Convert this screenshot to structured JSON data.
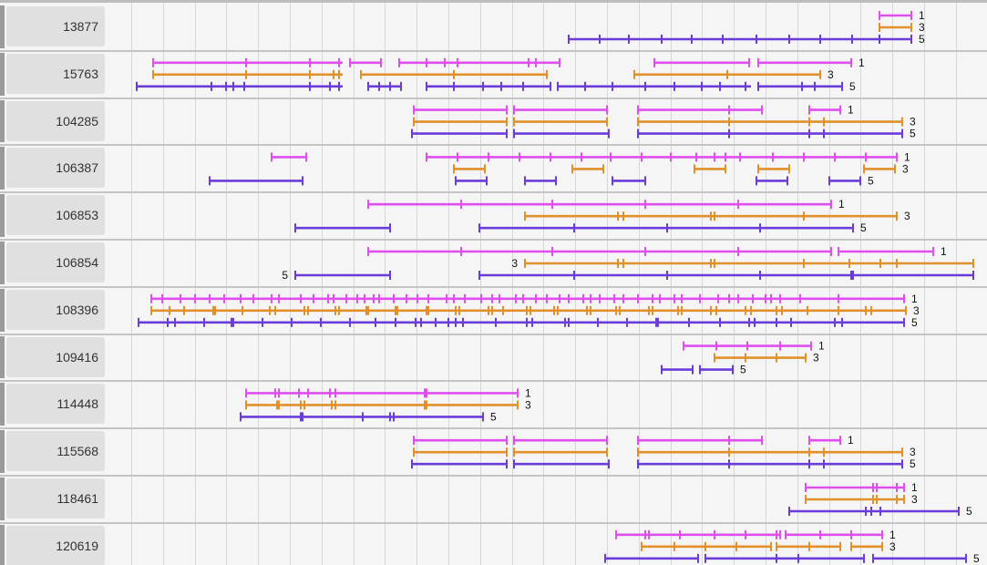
{
  "colors": {
    "frame1": "#e14ef0",
    "frame3": "#e2902a",
    "frame5": "#6a3ddb"
  },
  "rows": [
    {
      "id": "13877",
      "tracks": [
        {
          "frame": "1",
          "label": "1",
          "label_side": "right",
          "segments": [
            [
              965,
              1000
            ]
          ],
          "marks": [
            965,
            1000
          ]
        },
        {
          "frame": "3",
          "label": "3",
          "label_side": "right",
          "segments": [
            [
              965,
              1000
            ]
          ],
          "marks": [
            965,
            1000
          ]
        },
        {
          "frame": "5",
          "label": "5",
          "label_side": "right",
          "segments": [
            [
              624,
              1000
            ]
          ],
          "marks": [
            624,
            658,
            690,
            726,
            759,
            793,
            830,
            866,
            900,
            935,
            965,
            1000
          ]
        }
      ]
    },
    {
      "id": "15763",
      "tracks": [
        {
          "frame": "1",
          "label": "1",
          "label_side": "right",
          "segments": [
            [
              168,
              376
            ],
            [
              384,
              418
            ],
            [
              438,
              614
            ],
            [
              718,
              822
            ],
            [
              832,
              934
            ]
          ],
          "marks": [
            168,
            270,
            340,
            372,
            384,
            418,
            438,
            468,
            488,
            502,
            580,
            588,
            614,
            718,
            822,
            832,
            934
          ]
        },
        {
          "frame": "3",
          "label": "3",
          "label_side": "right",
          "segments": [
            [
              168,
              376
            ],
            [
              396,
              600
            ],
            [
              696,
              900
            ]
          ],
          "marks": [
            168,
            270,
            340,
            366,
            372,
            396,
            498,
            600,
            696,
            798,
            900
          ]
        },
        {
          "frame": "5",
          "label": "5",
          "label_side": "right",
          "segments": [
            [
              150,
              376
            ],
            [
              404,
              440
            ],
            [
              468,
              604
            ],
            [
              612,
              824
            ],
            [
              832,
              924
            ]
          ],
          "marks": [
            150,
            232,
            248,
            256,
            268,
            340,
            362,
            372,
            404,
            416,
            428,
            440,
            468,
            498,
            530,
            550,
            574,
            604,
            612,
            642,
            672,
            708,
            740,
            770,
            790,
            818,
            832,
            880,
            894,
            924
          ]
        }
      ]
    },
    {
      "id": "104285",
      "tracks": [
        {
          "frame": "1",
          "label": "1",
          "label_side": "right",
          "segments": [
            [
              454,
              556
            ],
            [
              564,
              666
            ],
            [
              700,
              836
            ],
            [
              888,
              922
            ]
          ],
          "marks": [
            454,
            556,
            564,
            666,
            700,
            800,
            836,
            888,
            922
          ]
        },
        {
          "frame": "3",
          "label": "3",
          "label_side": "right",
          "segments": [
            [
              454,
              556
            ],
            [
              564,
              666
            ],
            [
              700,
              990
            ]
          ],
          "marks": [
            454,
            556,
            564,
            666,
            700,
            800,
            888,
            904,
            990
          ]
        },
        {
          "frame": "5",
          "label": "5",
          "label_side": "right",
          "segments": [
            [
              452,
              556
            ],
            [
              564,
              668
            ],
            [
              700,
              990
            ]
          ],
          "marks": [
            452,
            556,
            564,
            668,
            700,
            800,
            888,
            904,
            990
          ]
        }
      ]
    },
    {
      "id": "106387",
      "tracks": [
        {
          "frame": "1",
          "label": "1",
          "label_side": "right",
          "segments": [
            [
              298,
              336
            ],
            [
              468,
              984
            ]
          ],
          "marks": [
            298,
            336,
            468,
            502,
            536,
            570,
            604,
            638,
            670,
            704,
            736,
            764,
            784,
            796,
            812,
            848,
            882,
            916,
            950,
            984
          ]
        },
        {
          "frame": "3",
          "label": "3",
          "label_side": "right",
          "segments": [
            [
              498,
              532
            ],
            [
              628,
              662
            ],
            [
              762,
              796
            ],
            [
              832,
              866
            ],
            [
              948,
              982
            ]
          ],
          "marks": [
            498,
            532,
            628,
            662,
            762,
            796,
            832,
            866,
            948,
            982
          ]
        },
        {
          "frame": "5",
          "label": "5",
          "label_side": "right",
          "segments": [
            [
              230,
              332
            ],
            [
              500,
              534
            ],
            [
              576,
              610
            ],
            [
              672,
              708
            ],
            [
              830,
              864
            ],
            [
              910,
              944
            ]
          ],
          "marks": [
            230,
            332,
            500,
            534,
            576,
            610,
            672,
            708,
            830,
            864,
            910,
            944
          ]
        }
      ]
    },
    {
      "id": "106853",
      "tracks": [
        {
          "frame": "1",
          "label": "1",
          "label_side": "right",
          "segments": [
            [
              404,
              912
            ]
          ],
          "marks": [
            404,
            506,
            606,
            708,
            810,
            912
          ]
        },
        {
          "frame": "3",
          "label": "3",
          "label_side": "right",
          "segments": [
            [
              576,
              984
            ]
          ],
          "marks": [
            576,
            678,
            684,
            780,
            784,
            882,
            984
          ]
        },
        {
          "frame": "5",
          "label": "5",
          "label_side": "right",
          "segments": [
            [
              324,
              428
            ],
            [
              526,
              936
            ]
          ],
          "marks": [
            324,
            428,
            526,
            630,
            732,
            834,
            936
          ]
        }
      ]
    },
    {
      "id": "106854",
      "tracks": [
        {
          "frame": "1",
          "label": "1",
          "label_side": "right",
          "segments": [
            [
              404,
              912
            ],
            [
              920,
              1024
            ]
          ],
          "marks": [
            404,
            506,
            606,
            708,
            810,
            912,
            920,
            1024
          ]
        },
        {
          "frame": "3",
          "label": "3",
          "label_side": "left",
          "segments": [
            [
              576,
              1068
            ]
          ],
          "marks": [
            576,
            678,
            684,
            780,
            784,
            882,
            932,
            966,
            984,
            1068
          ]
        },
        {
          "frame": "5",
          "label": "5",
          "label_side": "left",
          "segments": [
            [
              324,
              428
            ],
            [
              526,
              1068
            ]
          ],
          "marks": [
            324,
            428,
            526,
            630,
            732,
            834,
            934,
            936,
            1068
          ]
        }
      ]
    },
    {
      "id": "108396",
      "tracks": [
        {
          "frame": "1",
          "label": "1",
          "label_side": "right",
          "segments": [
            [
              166,
              992
            ]
          ],
          "marks": [
            166,
            178,
            198,
            214,
            230,
            246,
            264,
            278,
            298,
            306,
            330,
            344,
            360,
            366,
            380,
            392,
            400,
            410,
            416,
            432,
            446,
            458,
            470,
            490,
            498,
            510,
            528,
            540,
            548,
            566,
            574,
            588,
            600,
            614,
            624,
            640,
            648,
            658,
            674,
            684,
            700,
            716,
            724,
            740,
            748,
            768,
            788,
            800,
            810,
            826,
            840,
            846,
            856,
            878,
            920,
            992
          ]
        },
        {
          "frame": "3",
          "label": "3",
          "label_side": "right",
          "segments": [
            [
              166,
              994
            ]
          ],
          "marks": [
            166,
            186,
            202,
            234,
            236,
            266,
            296,
            302,
            334,
            338,
            368,
            372,
            402,
            404,
            434,
            436,
            468,
            470,
            500,
            504,
            536,
            540,
            552,
            578,
            582,
            608,
            612,
            644,
            648,
            676,
            680,
            712,
            716,
            744,
            748,
            780,
            786,
            818,
            824,
            852,
            858,
            886,
            920,
            950,
            956,
            994
          ]
        },
        {
          "frame": "5",
          "label": "5",
          "label_side": "right",
          "segments": [
            [
              152,
              992
            ]
          ],
          "marks": [
            152,
            184,
            192,
            224,
            254,
            256,
            288,
            320,
            352,
            384,
            412,
            434,
            456,
            462,
            478,
            492,
            500,
            508,
            544,
            578,
            584,
            620,
            624,
            656,
            688,
            720,
            722,
            756,
            790,
            822,
            828,
            852,
            868,
            916,
            924,
            992
          ]
        }
      ]
    },
    {
      "id": "109416",
      "tracks": [
        {
          "frame": "1",
          "label": "1",
          "label_side": "right",
          "segments": [
            [
              750,
              890
            ]
          ],
          "marks": [
            750,
            786,
            820,
            856,
            890
          ]
        },
        {
          "frame": "3",
          "label": "3",
          "label_side": "right",
          "segments": [
            [
              784,
              884
            ]
          ],
          "marks": [
            784,
            818,
            852,
            884
          ]
        },
        {
          "frame": "5",
          "label": "5",
          "label_side": "right",
          "segments": [
            [
              726,
              760
            ],
            [
              768,
              804
            ]
          ],
          "marks": [
            726,
            760,
            768,
            804
          ]
        }
      ]
    },
    {
      "id": "114448",
      "tracks": [
        {
          "frame": "1",
          "label": "1",
          "label_side": "right",
          "segments": [
            [
              270,
              568
            ]
          ],
          "marks": [
            270,
            302,
            306,
            328,
            338,
            362,
            368,
            466,
            468,
            568
          ]
        },
        {
          "frame": "3",
          "label": "3",
          "label_side": "right",
          "segments": [
            [
              270,
              568
            ]
          ],
          "marks": [
            270,
            304,
            306,
            330,
            334,
            364,
            368,
            466,
            468,
            568
          ]
        },
        {
          "frame": "5",
          "label": "5",
          "label_side": "right",
          "segments": [
            [
              264,
              530
            ]
          ],
          "marks": [
            264,
            330,
            332,
            398,
            428,
            432,
            530
          ]
        }
      ]
    },
    {
      "id": "115568",
      "tracks": [
        {
          "frame": "1",
          "label": "1",
          "label_side": "right",
          "segments": [
            [
              454,
              556
            ],
            [
              564,
              666
            ],
            [
              700,
              836
            ],
            [
              888,
              922
            ]
          ],
          "marks": [
            454,
            556,
            564,
            666,
            700,
            800,
            836,
            888,
            922
          ]
        },
        {
          "frame": "3",
          "label": "3",
          "label_side": "right",
          "segments": [
            [
              454,
              556
            ],
            [
              564,
              666
            ],
            [
              700,
              990
            ]
          ],
          "marks": [
            454,
            556,
            564,
            666,
            700,
            800,
            888,
            904,
            990
          ]
        },
        {
          "frame": "5",
          "label": "5",
          "label_side": "right",
          "segments": [
            [
              452,
              556
            ],
            [
              564,
              668
            ],
            [
              700,
              990
            ]
          ],
          "marks": [
            452,
            556,
            564,
            668,
            700,
            800,
            888,
            904,
            990
          ]
        }
      ]
    },
    {
      "id": "118461",
      "tracks": [
        {
          "frame": "1",
          "label": "1",
          "label_side": "right",
          "segments": [
            [
              884,
              992
            ]
          ],
          "marks": [
            884,
            958,
            962,
            984,
            992
          ]
        },
        {
          "frame": "3",
          "label": "3",
          "label_side": "right",
          "segments": [
            [
              884,
              992
            ]
          ],
          "marks": [
            884,
            958,
            962,
            984,
            992
          ]
        },
        {
          "frame": "5",
          "label": "5",
          "label_side": "right",
          "segments": [
            [
              866,
              1052
            ]
          ],
          "marks": [
            866,
            950,
            956,
            966,
            1052
          ]
        }
      ]
    },
    {
      "id": "120619",
      "tracks": [
        {
          "frame": "1",
          "label": "1",
          "label_side": "right",
          "segments": [
            [
              676,
              856
            ],
            [
              862,
              968
            ]
          ],
          "marks": [
            676,
            708,
            712,
            746,
            784,
            818,
            852,
            856,
            862,
            900,
            934,
            968
          ]
        },
        {
          "frame": "3",
          "label": "3",
          "label_side": "right",
          "segments": [
            [
              704,
              846
            ],
            [
              852,
              922
            ],
            [
              934,
              968
            ]
          ],
          "marks": [
            704,
            740,
            774,
            808,
            846,
            852,
            888,
            922,
            934,
            968
          ]
        },
        {
          "frame": "5",
          "label": "5",
          "label_side": "right",
          "segments": [
            [
              664,
              766
            ],
            [
              774,
              948
            ],
            [
              958,
              1060
            ]
          ],
          "marks": [
            664,
            766,
            774,
            852,
            876,
            948,
            958,
            1060
          ]
        }
      ]
    }
  ]
}
